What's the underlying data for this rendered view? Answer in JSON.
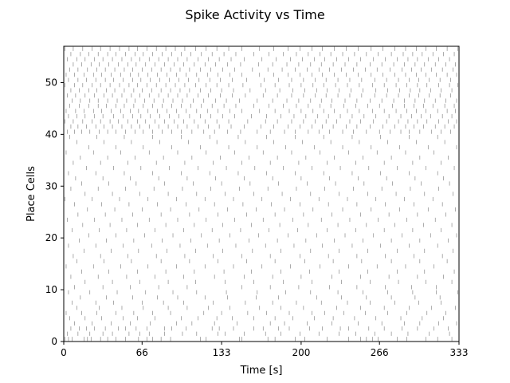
{
  "chart_data": {
    "type": "raster",
    "title": "Spike Activity vs Time",
    "xlabel": "Time [s]",
    "ylabel": "Place Cells",
    "xlim": [
      0,
      333
    ],
    "ylim": [
      0,
      57
    ],
    "xticks": [
      0,
      66,
      133,
      200,
      266,
      333
    ],
    "xtick_labels": [
      "0",
      "66",
      "133",
      "200",
      "266",
      "333"
    ],
    "yticks": [
      0,
      10,
      20,
      30,
      40,
      50
    ],
    "ytick_labels": [
      "0",
      "10",
      "20",
      "30",
      "40",
      "50"
    ],
    "grid": false,
    "cell_count": 57,
    "spike_color": "#000000",
    "spikes_estimated": [
      [
        1,
        4,
        7,
        17,
        20,
        23,
        31,
        37,
        44,
        52,
        63,
        70,
        75,
        82,
        90,
        115,
        120,
        148,
        150,
        172,
        178,
        195,
        203,
        222,
        240,
        250,
        255,
        260,
        265,
        281,
        289,
        305,
        315,
        327
      ],
      [
        3,
        12,
        22,
        33,
        41,
        55,
        64,
        72,
        85,
        100,
        112,
        130,
        136,
        152,
        170,
        183,
        199,
        215,
        232,
        246,
        262,
        276,
        290,
        308,
        325
      ],
      [
        0,
        6,
        13,
        19,
        26,
        35,
        46,
        52,
        61,
        70,
        85,
        91,
        103,
        125,
        131,
        143,
        160,
        168,
        181,
        190,
        207,
        218,
        233,
        240,
        257,
        270,
        285,
        298,
        312,
        324
      ],
      [
        9,
        24,
        40,
        56,
        73,
        95,
        108,
        127,
        146,
        174,
        186,
        205,
        226,
        248,
        268,
        287,
        300,
        316,
        331
      ],
      [
        5,
        18,
        32,
        50,
        62,
        77,
        99,
        113,
        129,
        142,
        160,
        178,
        193,
        211,
        227,
        245,
        263,
        284,
        302,
        320
      ],
      [
        2,
        15,
        28,
        44,
        59,
        75,
        90,
        118,
        133,
        155,
        171,
        190,
        209,
        220,
        236,
        254,
        273,
        289,
        306,
        322
      ],
      [
        11,
        30,
        49,
        67,
        88,
        104,
        122,
        140,
        165,
        183,
        202,
        230,
        250,
        270,
        291,
        310,
        330
      ],
      [
        7,
        27,
        42,
        66,
        84,
        101,
        126,
        153,
        176,
        196,
        217,
        239,
        258,
        279,
        299,
        318
      ],
      [
        14,
        36,
        58,
        79,
        96,
        119,
        138,
        162,
        181,
        213,
        234,
        255,
        276,
        296,
        317
      ],
      [
        4,
        22,
        45,
        69,
        92,
        112,
        137,
        163,
        187,
        208,
        231,
        252,
        273,
        294,
        314,
        332
      ],
      [
        9,
        33,
        56,
        80,
        104,
        150,
        174,
        198,
        224,
        247,
        271,
        293,
        314
      ],
      [
        18,
        41,
        64,
        88,
        111,
        136,
        160,
        185,
        209,
        234,
        258,
        282,
        305,
        327
      ],
      [
        6,
        29,
        53,
        77,
        101,
        127,
        152,
        176,
        200,
        226,
        250,
        274,
        298,
        320
      ],
      [
        15,
        38,
        62,
        86,
        110,
        135,
        158,
        183,
        207,
        232,
        256,
        281,
        304,
        329
      ],
      [
        2,
        25,
        48,
        71,
        95,
        119,
        143,
        167,
        191,
        216,
        240,
        264,
        288,
        312
      ],
      [
        11,
        34,
        57,
        82,
        106,
        130,
        154,
        178,
        203,
        227,
        251,
        276,
        300,
        323
      ],
      [
        8,
        31,
        54,
        78,
        102,
        126,
        150,
        174,
        199,
        223,
        247,
        271,
        295,
        319
      ],
      [
        17,
        40,
        63,
        87,
        111,
        134,
        159,
        183,
        208,
        232,
        256,
        281,
        304,
        328
      ],
      [
        4,
        27,
        50,
        74,
        98,
        121,
        145,
        170,
        194,
        218,
        243,
        267,
        291,
        315
      ],
      [
        13,
        36,
        59,
        83,
        107,
        131,
        156,
        180,
        204,
        228,
        252,
        276,
        300,
        324
      ],
      [
        21,
        44,
        68,
        92,
        116,
        140,
        164,
        189,
        213,
        237,
        261,
        285,
        309,
        331
      ],
      [
        7,
        30,
        53,
        77,
        101,
        125,
        149,
        173,
        197,
        222,
        246,
        270,
        294,
        318
      ],
      [
        16,
        39,
        62,
        86,
        110,
        134,
        158,
        182,
        206,
        231,
        255,
        279,
        303,
        327
      ],
      [
        3,
        26,
        49,
        72,
        96,
        120,
        144,
        168,
        193,
        217,
        241,
        265,
        289,
        313
      ],
      [
        12,
        35,
        58,
        82,
        106,
        130,
        154,
        178,
        202,
        226,
        250,
        274,
        298,
        322
      ],
      [
        20,
        43,
        66,
        90,
        114,
        138,
        162,
        186,
        210,
        235,
        259,
        283,
        307,
        330
      ],
      [
        9,
        32,
        55,
        79,
        103,
        127,
        151,
        175,
        199,
        223,
        247,
        271,
        295,
        319
      ],
      [
        1,
        24,
        47,
        71,
        95,
        119,
        143,
        167,
        191,
        215,
        239,
        263,
        287,
        311
      ],
      [
        18,
        41,
        64,
        88,
        112,
        136,
        160,
        184,
        208,
        232,
        256,
        280,
        304,
        328
      ],
      [
        6,
        29,
        52,
        76,
        100,
        124,
        148,
        172,
        196,
        220,
        244,
        268,
        292,
        316
      ],
      [
        15,
        38,
        61,
        85,
        109,
        133,
        157,
        181,
        205,
        229,
        253,
        277,
        301,
        325
      ],
      [
        10,
        33,
        56,
        80,
        104,
        128,
        152,
        176,
        200,
        224,
        248,
        272,
        296,
        320
      ],
      [
        4,
        27,
        51,
        75,
        99,
        123,
        147,
        171,
        195,
        219,
        243,
        267,
        291,
        315
      ],
      [
        19,
        42,
        65,
        89,
        113,
        137,
        161,
        185,
        209,
        233,
        257,
        281,
        305,
        329
      ],
      [
        8,
        31,
        54,
        78,
        102,
        126,
        150,
        174,
        198,
        222,
        246,
        270,
        294,
        318
      ],
      [
        14,
        37,
        60,
        84,
        108,
        132,
        156,
        180,
        204,
        228,
        252,
        276,
        300,
        324
      ],
      [
        2,
        25,
        48,
        72,
        96,
        120,
        144,
        168,
        192,
        216,
        240,
        264,
        288,
        312
      ],
      [
        21,
        44,
        67,
        91,
        115,
        139,
        163,
        187,
        211,
        235,
        259,
        283,
        307,
        331
      ],
      [
        11,
        34,
        57,
        81,
        105,
        129,
        153,
        177,
        201,
        225,
        249,
        273,
        297,
        321
      ],
      [
        5,
        28,
        51,
        75,
        99,
        123,
        147,
        171,
        195,
        219,
        243,
        267,
        291,
        315
      ],
      [
        3,
        9,
        15,
        22,
        30,
        37,
        44,
        52,
        60,
        67,
        75,
        83,
        91,
        99,
        108,
        118,
        127,
        138,
        149,
        163,
        174,
        186,
        195,
        206,
        215,
        224,
        235,
        244,
        255,
        266,
        275,
        284,
        291,
        300,
        310,
        318,
        326
      ],
      [
        6,
        12,
        19,
        27,
        34,
        41,
        49,
        57,
        64,
        72,
        80,
        88,
        96,
        104,
        113,
        122,
        131,
        141,
        152,
        166,
        177,
        189,
        199,
        209,
        218,
        227,
        238,
        247,
        258,
        269,
        279,
        288,
        295,
        303,
        313,
        321,
        329
      ],
      [
        1,
        8,
        16,
        24,
        31,
        39,
        46,
        54,
        62,
        69,
        77,
        85,
        93,
        101,
        110,
        119,
        129,
        139,
        155,
        170,
        180,
        192,
        202,
        212,
        221,
        230,
        241,
        250,
        261,
        272,
        282,
        290,
        298,
        306,
        316,
        324,
        331
      ],
      [
        4,
        11,
        18,
        26,
        33,
        42,
        50,
        58,
        65,
        73,
        81,
        89,
        97,
        106,
        115,
        124,
        134,
        144,
        158,
        171,
        183,
        194,
        204,
        214,
        223,
        233,
        243,
        253,
        263,
        274,
        284,
        293,
        301,
        309,
        319,
        327
      ],
      [
        2,
        10,
        17,
        25,
        32,
        40,
        48,
        56,
        63,
        71,
        79,
        87,
        95,
        103,
        112,
        121,
        130,
        140,
        150,
        165,
        178,
        190,
        200,
        210,
        219,
        228,
        239,
        249,
        260,
        270,
        280,
        289,
        297,
        305,
        315,
        323,
        330
      ],
      [
        5,
        13,
        21,
        29,
        36,
        44,
        51,
        59,
        67,
        75,
        83,
        91,
        99,
        107,
        116,
        125,
        135,
        145,
        160,
        173,
        185,
        196,
        206,
        216,
        225,
        236,
        246,
        256,
        266,
        277,
        287,
        295,
        303,
        311,
        321,
        329
      ],
      [
        0,
        7,
        14,
        22,
        29,
        37,
        45,
        53,
        60,
        68,
        76,
        84,
        92,
        100,
        109,
        118,
        128,
        137,
        148,
        163,
        176,
        188,
        198,
        208,
        217,
        226,
        237,
        247,
        258,
        268,
        278,
        287,
        296,
        304,
        313,
        322,
        331
      ],
      [
        3,
        10,
        18,
        26,
        34,
        41,
        49,
        57,
        64,
        72,
        80,
        88,
        96,
        104,
        113,
        122,
        132,
        142,
        153,
        168,
        180,
        192,
        202,
        212,
        221,
        231,
        241,
        251,
        262,
        272,
        282,
        291,
        299,
        308,
        317,
        326
      ],
      [
        6,
        13,
        21,
        28,
        36,
        43,
        51,
        59,
        66,
        74,
        82,
        90,
        98,
        106,
        115,
        124,
        133,
        143,
        157,
        170,
        182,
        193,
        203,
        213,
        222,
        232,
        242,
        252,
        263,
        273,
        283,
        292,
        300,
        309,
        318,
        327
      ],
      [
        1,
        9,
        16,
        24,
        31,
        39,
        47,
        55,
        62,
        70,
        78,
        86,
        94,
        102,
        111,
        120,
        129,
        139,
        151,
        166,
        178,
        190,
        200,
        210,
        219,
        229,
        239,
        249,
        260,
        270,
        280,
        289,
        298,
        306,
        316,
        325,
        332
      ],
      [
        4,
        12,
        19,
        27,
        35,
        42,
        50,
        58,
        65,
        73,
        81,
        89,
        97,
        105,
        114,
        123,
        132,
        142,
        154,
        169,
        181,
        192,
        202,
        212,
        221,
        231,
        241,
        251,
        262,
        272,
        282,
        291,
        299,
        308,
        317,
        326
      ],
      [
        2,
        9,
        17,
        25,
        32,
        40,
        48,
        56,
        63,
        71,
        79,
        87,
        95,
        103,
        112,
        121,
        130,
        140,
        150,
        165,
        177,
        189,
        199,
        209,
        218,
        228,
        238,
        248,
        259,
        269,
        279,
        288,
        297,
        305,
        314,
        323,
        331
      ],
      [
        5,
        12,
        20,
        28,
        35,
        43,
        51,
        58,
        66,
        74,
        82,
        90,
        98,
        106,
        115,
        124,
        134,
        144,
        159,
        172,
        184,
        195,
        205,
        215,
        224,
        234,
        244,
        254,
        264,
        275,
        285,
        293,
        301,
        310,
        319,
        328
      ],
      [
        0,
        8,
        15,
        23,
        30,
        38,
        46,
        54,
        61,
        69,
        77,
        85,
        93,
        101,
        110,
        119,
        128,
        138,
        149,
        164,
        176,
        188,
        198,
        208,
        217,
        227,
        237,
        247,
        258,
        268,
        278,
        287,
        296,
        304,
        313,
        322,
        330
      ],
      [
        3,
        11,
        18,
        26,
        33,
        41,
        49,
        57,
        64,
        72,
        80,
        88,
        96,
        104,
        113,
        122,
        131,
        141,
        152,
        167,
        179,
        191,
        201,
        211,
        220,
        230,
        240,
        250,
        261,
        271,
        281,
        290,
        298,
        307,
        316,
        325
      ],
      [
        6,
        14,
        21,
        29,
        37,
        44,
        52,
        60,
        67,
        75,
        83,
        91,
        99,
        107,
        116,
        125,
        135,
        145,
        160,
        173,
        185,
        196,
        206,
        216,
        225,
        235,
        245,
        255,
        265,
        276,
        286,
        294,
        302,
        311,
        320,
        329
      ],
      [
        1,
        8,
        16,
        24,
        31,
        39,
        47,
        55,
        62,
        70,
        78,
        86,
        94,
        102,
        111,
        120,
        129,
        139,
        150,
        165,
        177,
        189,
        199,
        209,
        218,
        228,
        238,
        248,
        259,
        269,
        279,
        288,
        297,
        305,
        314,
        323,
        332
      ]
    ]
  }
}
